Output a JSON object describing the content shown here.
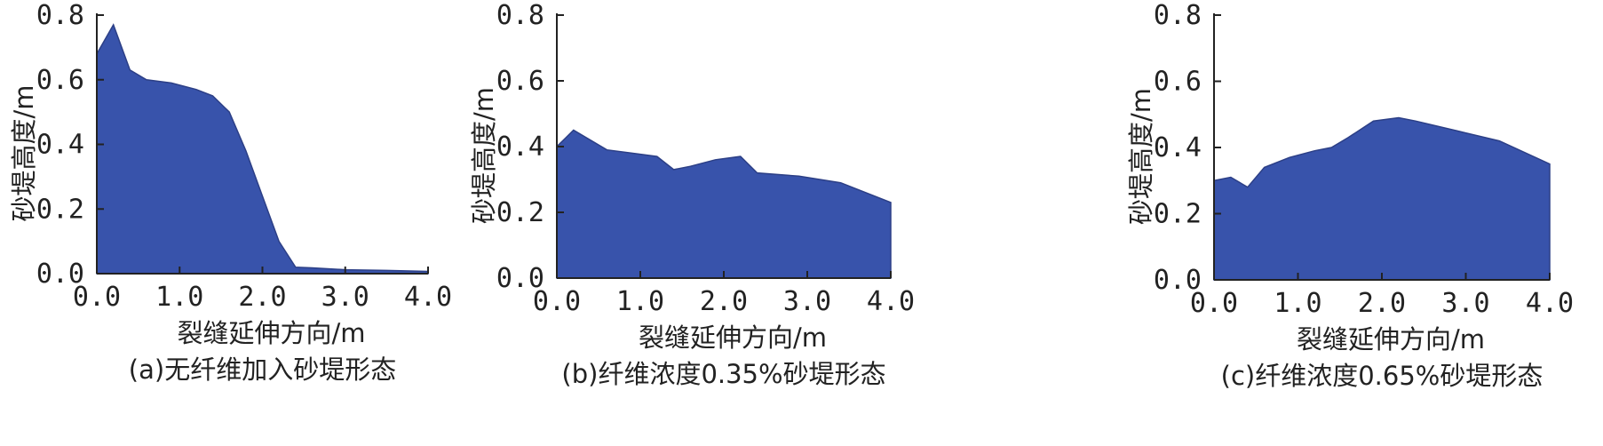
{
  "chart_data": [
    {
      "type": "area",
      "caption": "(a)无纤维加入砂堤形态",
      "xlabel": "裂缝延伸方向/m",
      "ylabel": "砂堤高度/m",
      "xlim": [
        0,
        4.0
      ],
      "ylim": [
        0,
        0.8
      ],
      "xticks": [
        "0.0",
        "1.0",
        "2.0",
        "3.0",
        "4.0"
      ],
      "yticks": [
        "0.0",
        "0.2",
        "0.4",
        "0.6",
        "0.8"
      ],
      "x": [
        0,
        0.2,
        0.4,
        0.6,
        0.9,
        1.2,
        1.4,
        1.6,
        1.8,
        2.0,
        2.2,
        2.4,
        2.6,
        3.0,
        3.5,
        4.0
      ],
      "y": [
        0.68,
        0.77,
        0.63,
        0.6,
        0.59,
        0.57,
        0.55,
        0.5,
        0.38,
        0.24,
        0.1,
        0.02,
        0.018,
        0.012,
        0.01,
        0.007
      ],
      "color": "#3853ab"
    },
    {
      "type": "area",
      "caption": "(b)纤维浓度0.35%砂堤形态",
      "xlabel": "裂缝延伸方向/m",
      "ylabel": "砂堤高度/m",
      "xlim": [
        0,
        4.0
      ],
      "ylim": [
        0,
        0.8
      ],
      "xticks": [
        "0.0",
        "1.0",
        "2.0",
        "3.0",
        "4.0"
      ],
      "yticks": [
        "0.0",
        "0.2",
        "0.4",
        "0.6",
        "0.8"
      ],
      "x": [
        0,
        0.2,
        0.6,
        0.9,
        1.2,
        1.4,
        1.6,
        1.9,
        2.2,
        2.4,
        2.9,
        3.4,
        4.0
      ],
      "y": [
        0.4,
        0.45,
        0.39,
        0.38,
        0.37,
        0.33,
        0.34,
        0.36,
        0.37,
        0.32,
        0.31,
        0.29,
        0.23
      ],
      "color": "#3853ab"
    },
    {
      "type": "area",
      "caption": "(c)纤维浓度0.65%砂堤形态",
      "xlabel": "裂缝延伸方向/m",
      "ylabel": "砂堤高度/m",
      "xlim": [
        0,
        4.0
      ],
      "ylim": [
        0,
        0.8
      ],
      "xticks": [
        "0.0",
        "1.0",
        "2.0",
        "3.0",
        "4.0"
      ],
      "yticks": [
        "0.0",
        "0.2",
        "0.4",
        "0.6",
        "0.8"
      ],
      "x": [
        0,
        0.2,
        0.4,
        0.6,
        0.9,
        1.2,
        1.4,
        1.6,
        1.9,
        2.2,
        2.4,
        2.9,
        3.4,
        4.0
      ],
      "y": [
        0.3,
        0.31,
        0.28,
        0.34,
        0.37,
        0.39,
        0.4,
        0.43,
        0.48,
        0.49,
        0.48,
        0.45,
        0.42,
        0.35
      ],
      "color": "#3853ab"
    }
  ]
}
